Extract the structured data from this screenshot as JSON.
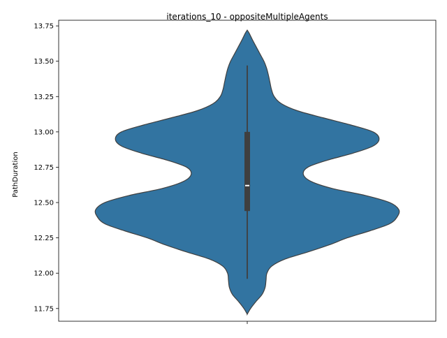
{
  "chart_data": {
    "type": "violin",
    "title": "iterations_10 - oppositeMultipleAgents",
    "xlabel": "",
    "ylabel": "PathDuration",
    "ylim": [
      11.66,
      13.79
    ],
    "yticks": [
      "11.75",
      "12.00",
      "12.25",
      "12.50",
      "12.75",
      "13.00",
      "13.25",
      "13.50",
      "13.75"
    ],
    "xticks": [
      ""
    ],
    "fill_color": "#3274a1",
    "edge_color": "#3f3f3f",
    "box_color": "#3f3f3f",
    "median_color": "#ffffff",
    "density": {
      "y": [
        11.71,
        11.75,
        11.8,
        11.85,
        11.9,
        11.95,
        12.0,
        12.05,
        12.1,
        12.15,
        12.2,
        12.25,
        12.3,
        12.35,
        12.4,
        12.45,
        12.5,
        12.55,
        12.6,
        12.65,
        12.7,
        12.75,
        12.8,
        12.85,
        12.9,
        12.95,
        13.0,
        13.05,
        13.1,
        13.15,
        13.2,
        13.25,
        13.3,
        13.35,
        13.4,
        13.45,
        13.5,
        13.55,
        13.6,
        13.65,
        13.7,
        13.72
      ],
      "width": [
        0.0,
        0.022,
        0.058,
        0.098,
        0.118,
        0.124,
        0.13,
        0.162,
        0.25,
        0.4,
        0.54,
        0.66,
        0.81,
        0.94,
        0.99,
        1.0,
        0.94,
        0.78,
        0.56,
        0.42,
        0.37,
        0.4,
        0.53,
        0.7,
        0.83,
        0.87,
        0.83,
        0.68,
        0.5,
        0.33,
        0.225,
        0.178,
        0.16,
        0.15,
        0.14,
        0.128,
        0.11,
        0.085,
        0.06,
        0.035,
        0.012,
        0.0
      ]
    },
    "box": {
      "q1": 12.44,
      "median": 12.62,
      "q3": 13.0,
      "whisker_low": 11.96,
      "whisker_high": 13.47
    }
  }
}
